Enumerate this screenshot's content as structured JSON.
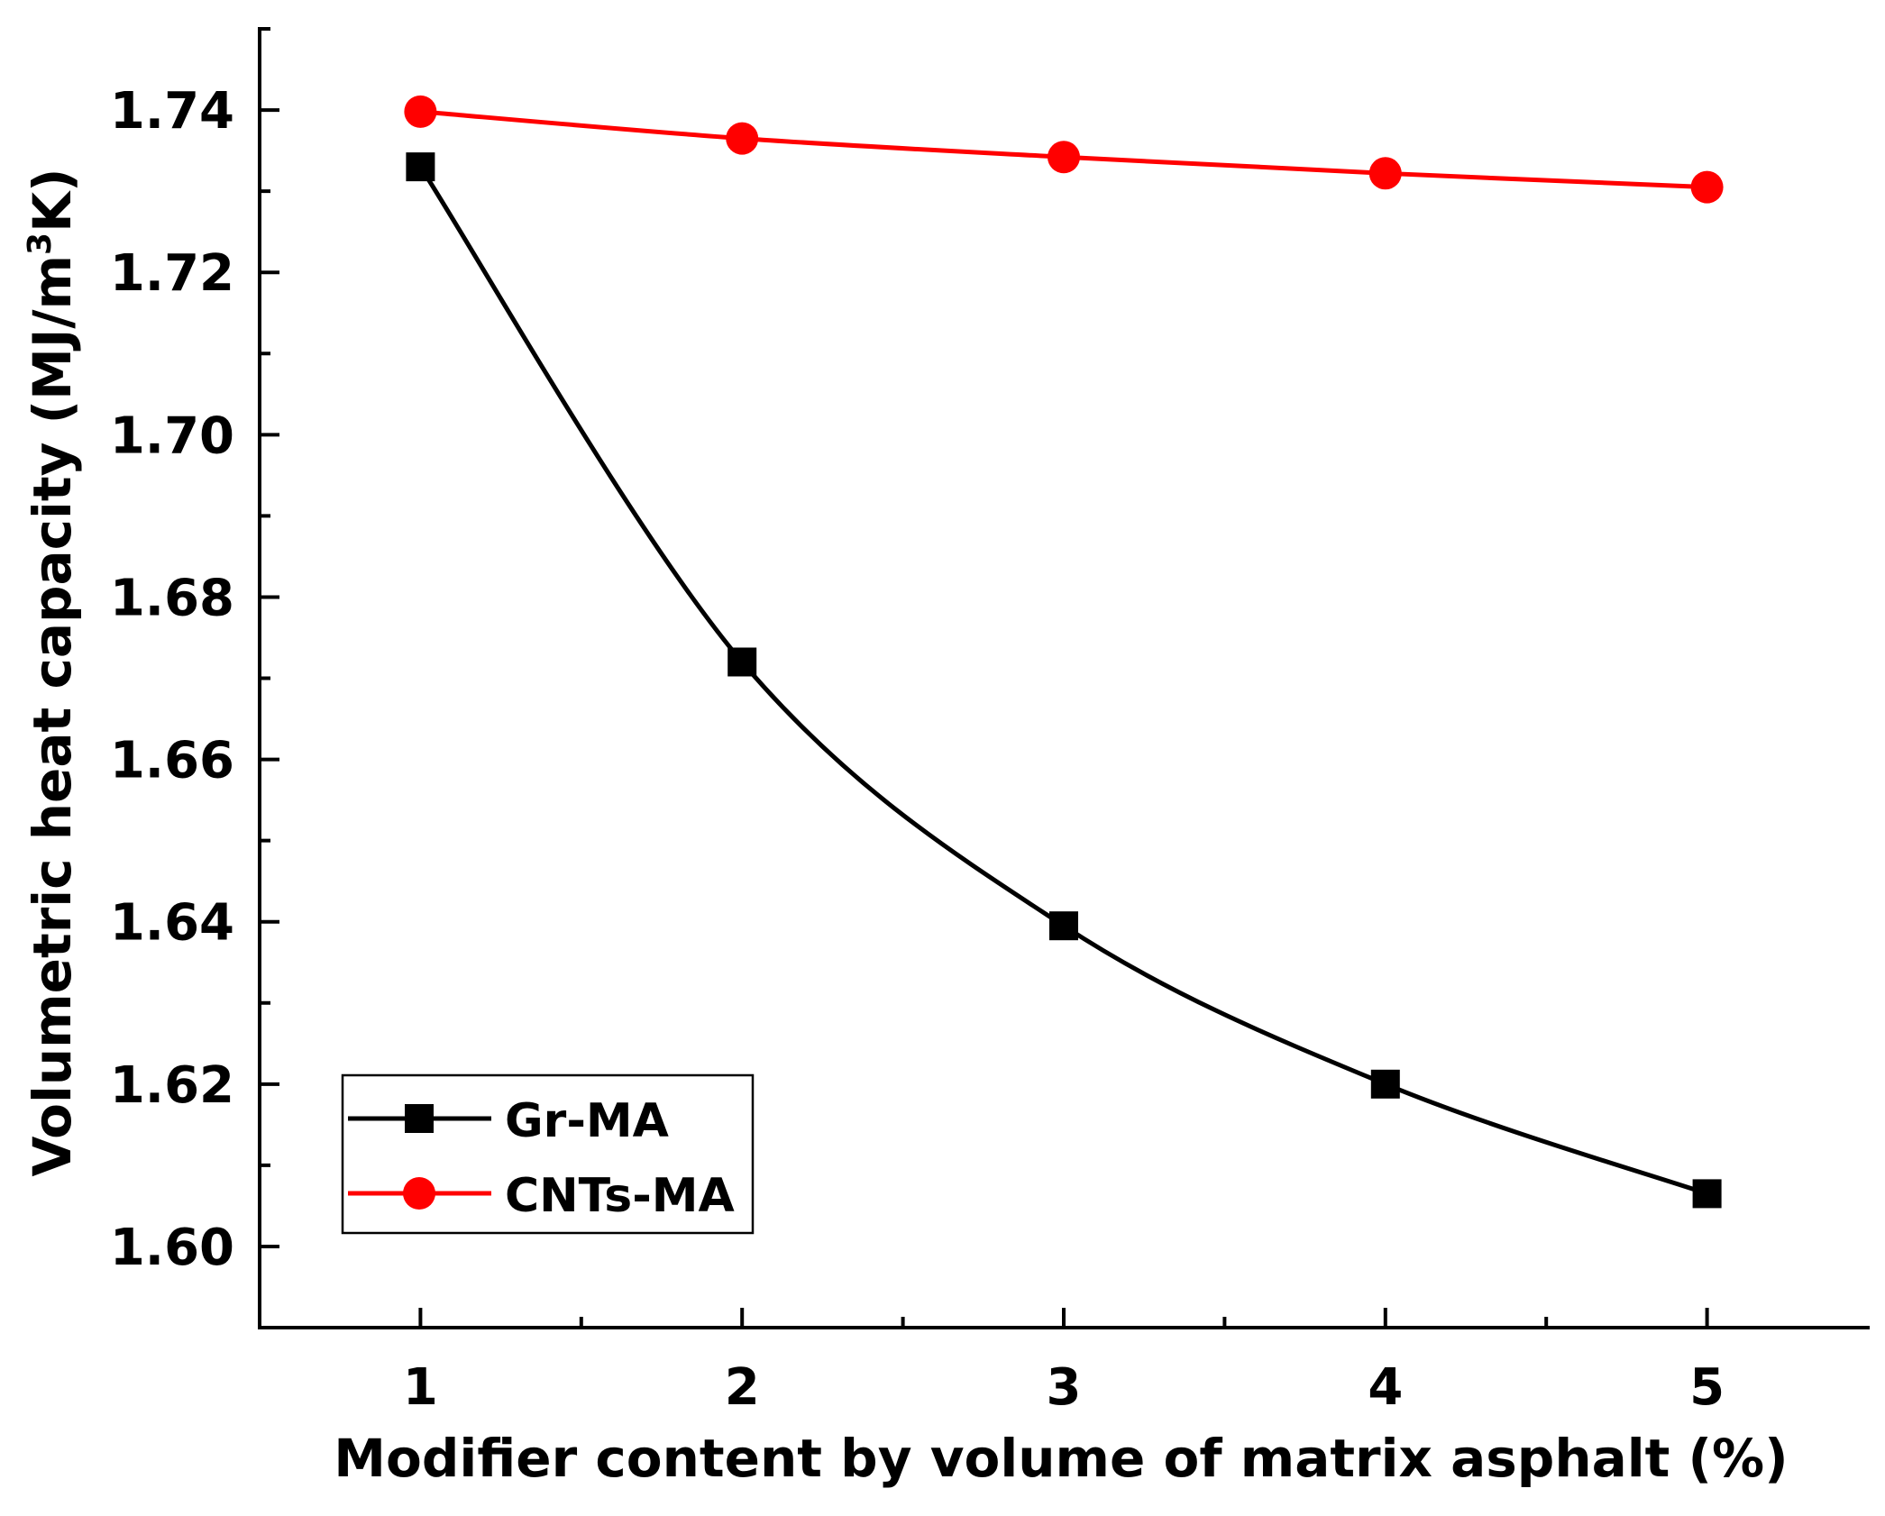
{
  "chart_data": {
    "type": "line",
    "title": "",
    "xlabel": "Modifier content by volume of matrix asphalt (%)",
    "ylabel": {
      "prefix": "Volumetric heat capacity (MJ/m",
      "superscript": "3",
      "suffix": "K)"
    },
    "xlim": [
      0.5,
      5.5
    ],
    "ylim": [
      1.59,
      1.75
    ],
    "x_ticks": [
      1,
      2,
      3,
      4,
      5
    ],
    "x_tick_labels": [
      "1",
      "2",
      "3",
      "4",
      "5"
    ],
    "x_minor_ticks": [
      1.5,
      2.5,
      3.5,
      4.5
    ],
    "y_ticks": [
      1.6,
      1.62,
      1.64,
      1.66,
      1.68,
      1.7,
      1.72,
      1.74
    ],
    "y_tick_labels": [
      "1.60",
      "1.62",
      "1.64",
      "1.66",
      "1.68",
      "1.70",
      "1.72",
      "1.74"
    ],
    "y_minor_ticks": [
      1.59,
      1.61,
      1.63,
      1.65,
      1.67,
      1.69,
      1.71,
      1.73,
      1.75
    ],
    "grid": false,
    "legend_position": "bottom-left",
    "series": [
      {
        "name": "Gr-MA",
        "color": "#000000",
        "marker": "square",
        "smooth": true,
        "x": [
          1,
          2,
          3,
          4,
          5
        ],
        "values": [
          1.733,
          1.672,
          1.6395,
          1.62,
          1.6065
        ]
      },
      {
        "name": "CNTs-MA",
        "color": "#ff0000",
        "marker": "circle",
        "smooth": true,
        "x": [
          1,
          2,
          3,
          4,
          5
        ],
        "values": [
          1.7398,
          1.7365,
          1.7342,
          1.7322,
          1.7305
        ]
      }
    ]
  }
}
